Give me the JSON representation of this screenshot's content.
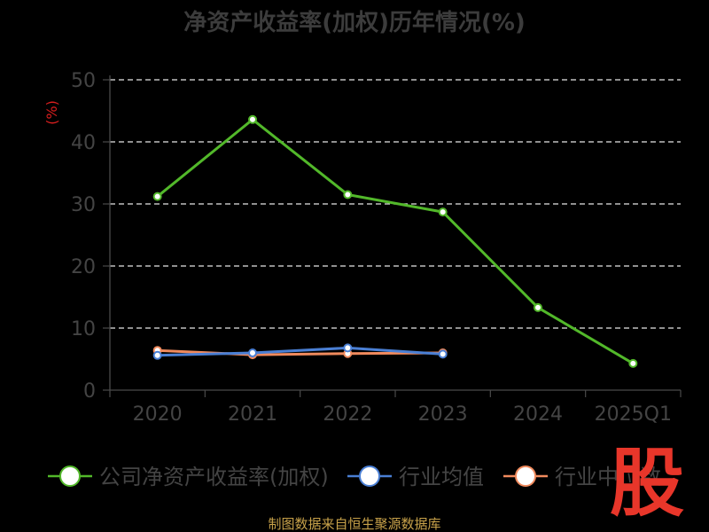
{
  "chart_data": {
    "type": "line",
    "title": "净资产收益率(加权)历年情况(%)",
    "ylabel": "(%)",
    "xlabel": "",
    "categories": [
      "2020",
      "2021",
      "2022",
      "2023",
      "2024",
      "2025Q1"
    ],
    "ylim": [
      0,
      50
    ],
    "yticks": [
      0,
      10,
      20,
      30,
      40,
      50
    ],
    "grid": true,
    "legend_position": "bottom",
    "series": [
      {
        "name": "公司净资产收益率(加权)",
        "color": "#52b82a",
        "values": [
          31.2,
          43.6,
          31.5,
          28.7,
          13.3,
          4.3
        ]
      },
      {
        "name": "行业均值",
        "color": "#4a7fd4",
        "values": [
          5.6,
          6.0,
          6.8,
          5.8,
          null,
          null
        ]
      },
      {
        "name": "行业中位数",
        "color": "#f08a5d",
        "values": [
          6.4,
          5.7,
          5.9,
          6.0,
          null,
          null
        ]
      }
    ]
  },
  "source": "制图数据来自恒生聚源数据库",
  "watermark": "股"
}
